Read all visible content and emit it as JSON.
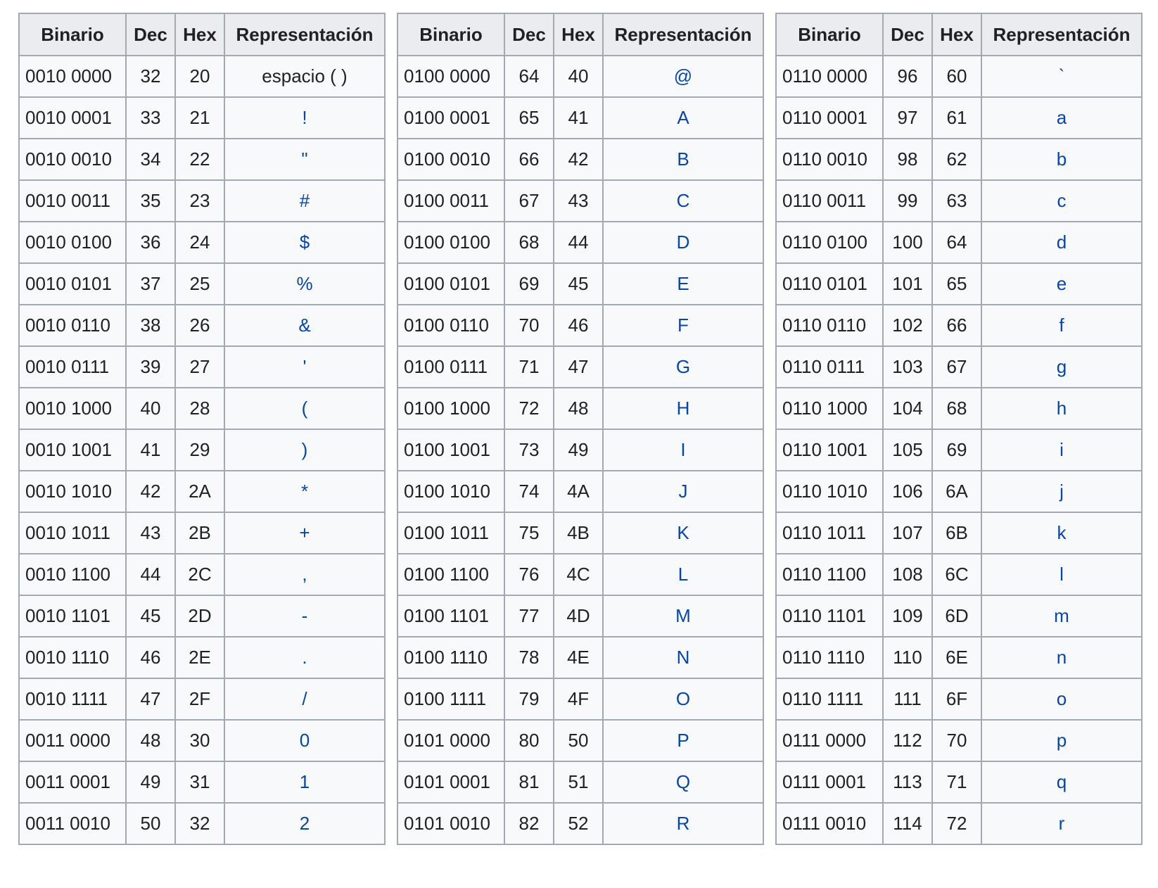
{
  "headers": {
    "binary": "Binario",
    "dec": "Dec",
    "hex": "Hex",
    "representation": "Representación"
  },
  "colors": {
    "link": "#0645ad",
    "text": "#202122",
    "header_bg": "#eaecf0",
    "cell_bg": "#f8f9fa",
    "border": "#a2a9b1"
  },
  "tables": [
    {
      "rows": [
        {
          "bin": "0010 0000",
          "dec": "32",
          "hex": "20",
          "rep": "espacio ( )",
          "link": false
        },
        {
          "bin": "0010 0001",
          "dec": "33",
          "hex": "21",
          "rep": "!",
          "link": true
        },
        {
          "bin": "0010 0010",
          "dec": "34",
          "hex": "22",
          "rep": "\"",
          "link": true
        },
        {
          "bin": "0010 0011",
          "dec": "35",
          "hex": "23",
          "rep": "#",
          "link": true
        },
        {
          "bin": "0010 0100",
          "dec": "36",
          "hex": "24",
          "rep": "$",
          "link": true
        },
        {
          "bin": "0010 0101",
          "dec": "37",
          "hex": "25",
          "rep": "%",
          "link": true
        },
        {
          "bin": "0010 0110",
          "dec": "38",
          "hex": "26",
          "rep": "&",
          "link": true
        },
        {
          "bin": "0010 0111",
          "dec": "39",
          "hex": "27",
          "rep": "'",
          "link": true
        },
        {
          "bin": "0010 1000",
          "dec": "40",
          "hex": "28",
          "rep": "(",
          "link": true
        },
        {
          "bin": "0010 1001",
          "dec": "41",
          "hex": "29",
          "rep": ")",
          "link": true
        },
        {
          "bin": "0010 1010",
          "dec": "42",
          "hex": "2A",
          "rep": "*",
          "link": true
        },
        {
          "bin": "0010 1011",
          "dec": "43",
          "hex": "2B",
          "rep": "+",
          "link": true
        },
        {
          "bin": "0010 1100",
          "dec": "44",
          "hex": "2C",
          "rep": ",",
          "link": true
        },
        {
          "bin": "0010 1101",
          "dec": "45",
          "hex": "2D",
          "rep": "-",
          "link": true
        },
        {
          "bin": "0010 1110",
          "dec": "46",
          "hex": "2E",
          "rep": ".",
          "link": true
        },
        {
          "bin": "0010 1111",
          "dec": "47",
          "hex": "2F",
          "rep": "/",
          "link": true
        },
        {
          "bin": "0011 0000",
          "dec": "48",
          "hex": "30",
          "rep": "0",
          "link": true
        },
        {
          "bin": "0011 0001",
          "dec": "49",
          "hex": "31",
          "rep": "1",
          "link": true
        },
        {
          "bin": "0011 0010",
          "dec": "50",
          "hex": "32",
          "rep": "2",
          "link": true
        }
      ]
    },
    {
      "rows": [
        {
          "bin": "0100 0000",
          "dec": "64",
          "hex": "40",
          "rep": "@",
          "link": true
        },
        {
          "bin": "0100 0001",
          "dec": "65",
          "hex": "41",
          "rep": "A",
          "link": true
        },
        {
          "bin": "0100 0010",
          "dec": "66",
          "hex": "42",
          "rep": "B",
          "link": true
        },
        {
          "bin": "0100 0011",
          "dec": "67",
          "hex": "43",
          "rep": "C",
          "link": true
        },
        {
          "bin": "0100 0100",
          "dec": "68",
          "hex": "44",
          "rep": "D",
          "link": true
        },
        {
          "bin": "0100 0101",
          "dec": "69",
          "hex": "45",
          "rep": "E",
          "link": true
        },
        {
          "bin": "0100 0110",
          "dec": "70",
          "hex": "46",
          "rep": "F",
          "link": true
        },
        {
          "bin": "0100 0111",
          "dec": "71",
          "hex": "47",
          "rep": "G",
          "link": true
        },
        {
          "bin": "0100 1000",
          "dec": "72",
          "hex": "48",
          "rep": "H",
          "link": true
        },
        {
          "bin": "0100 1001",
          "dec": "73",
          "hex": "49",
          "rep": "I",
          "link": true
        },
        {
          "bin": "0100 1010",
          "dec": "74",
          "hex": "4A",
          "rep": "J",
          "link": true
        },
        {
          "bin": "0100 1011",
          "dec": "75",
          "hex": "4B",
          "rep": "K",
          "link": true
        },
        {
          "bin": "0100 1100",
          "dec": "76",
          "hex": "4C",
          "rep": "L",
          "link": true
        },
        {
          "bin": "0100 1101",
          "dec": "77",
          "hex": "4D",
          "rep": "M",
          "link": true
        },
        {
          "bin": "0100 1110",
          "dec": "78",
          "hex": "4E",
          "rep": "N",
          "link": true
        },
        {
          "bin": "0100 1111",
          "dec": "79",
          "hex": "4F",
          "rep": "O",
          "link": true
        },
        {
          "bin": "0101 0000",
          "dec": "80",
          "hex": "50",
          "rep": "P",
          "link": true
        },
        {
          "bin": "0101 0001",
          "dec": "81",
          "hex": "51",
          "rep": "Q",
          "link": true
        },
        {
          "bin": "0101 0010",
          "dec": "82",
          "hex": "52",
          "rep": "R",
          "link": true
        }
      ]
    },
    {
      "rows": [
        {
          "bin": "0110 0000",
          "dec": "96",
          "hex": "60",
          "rep": "`",
          "link": true
        },
        {
          "bin": "0110 0001",
          "dec": "97",
          "hex": "61",
          "rep": "a",
          "link": true
        },
        {
          "bin": "0110 0010",
          "dec": "98",
          "hex": "62",
          "rep": "b",
          "link": true
        },
        {
          "bin": "0110 0011",
          "dec": "99",
          "hex": "63",
          "rep": "c",
          "link": true
        },
        {
          "bin": "0110 0100",
          "dec": "100",
          "hex": "64",
          "rep": "d",
          "link": true
        },
        {
          "bin": "0110 0101",
          "dec": "101",
          "hex": "65",
          "rep": "e",
          "link": true
        },
        {
          "bin": "0110 0110",
          "dec": "102",
          "hex": "66",
          "rep": "f",
          "link": true
        },
        {
          "bin": "0110 0111",
          "dec": "103",
          "hex": "67",
          "rep": "g",
          "link": true
        },
        {
          "bin": "0110 1000",
          "dec": "104",
          "hex": "68",
          "rep": "h",
          "link": true
        },
        {
          "bin": "0110 1001",
          "dec": "105",
          "hex": "69",
          "rep": "i",
          "link": true
        },
        {
          "bin": "0110 1010",
          "dec": "106",
          "hex": "6A",
          "rep": "j",
          "link": true
        },
        {
          "bin": "0110 1011",
          "dec": "107",
          "hex": "6B",
          "rep": "k",
          "link": true
        },
        {
          "bin": "0110 1100",
          "dec": "108",
          "hex": "6C",
          "rep": "l",
          "link": true
        },
        {
          "bin": "0110 1101",
          "dec": "109",
          "hex": "6D",
          "rep": "m",
          "link": true
        },
        {
          "bin": "0110 1110",
          "dec": "110",
          "hex": "6E",
          "rep": "n",
          "link": true
        },
        {
          "bin": "0110 1111",
          "dec": "111",
          "hex": "6F",
          "rep": "o",
          "link": true
        },
        {
          "bin": "0111 0000",
          "dec": "112",
          "hex": "70",
          "rep": "p",
          "link": true
        },
        {
          "bin": "0111 0001",
          "dec": "113",
          "hex": "71",
          "rep": "q",
          "link": true
        },
        {
          "bin": "0111 0010",
          "dec": "114",
          "hex": "72",
          "rep": "r",
          "link": true
        }
      ]
    }
  ]
}
